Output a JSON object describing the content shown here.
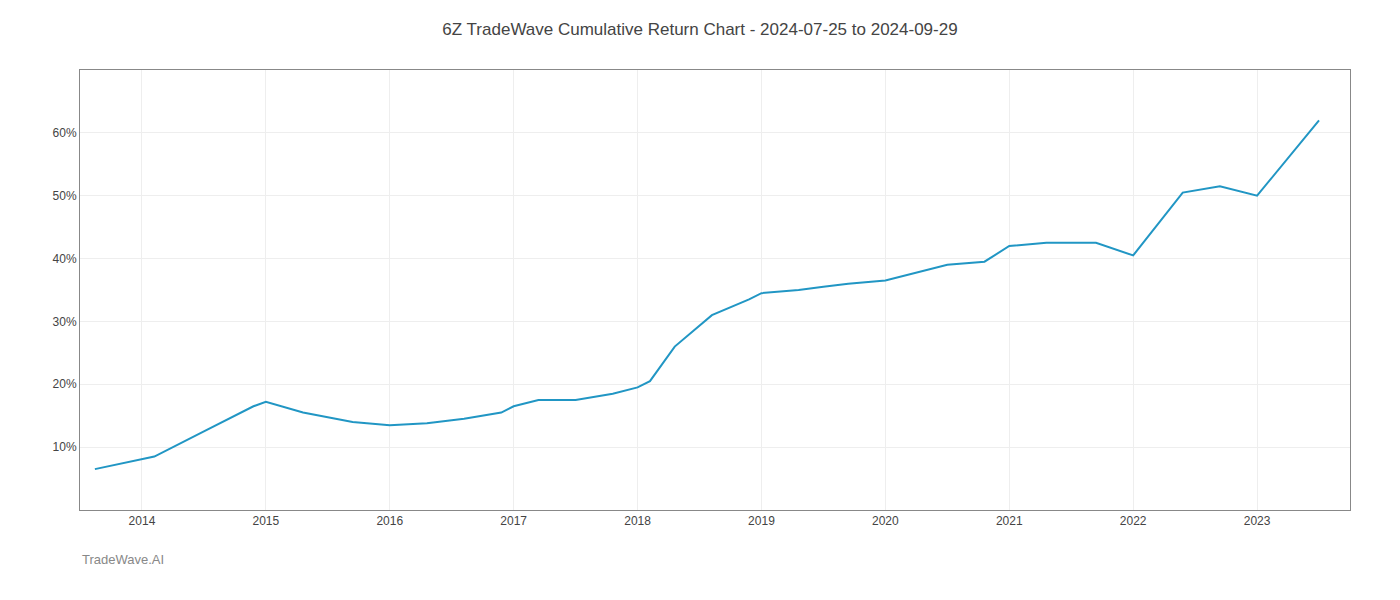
{
  "chart_data": {
    "type": "line",
    "title": "6Z TradeWave Cumulative Return Chart - 2024-07-25 to 2024-09-29",
    "annotations": [
      "TradeWave.AI"
    ],
    "x": [
      2013.62,
      2014.1,
      2014.5,
      2014.9,
      2015.0,
      2015.3,
      2015.7,
      2016.0,
      2016.3,
      2016.6,
      2016.9,
      2017.0,
      2017.2,
      2017.5,
      2017.8,
      2018.0,
      2018.1,
      2018.3,
      2018.6,
      2018.9,
      2019.0,
      2019.3,
      2019.5,
      2019.7,
      2020.0,
      2020.2,
      2020.5,
      2020.8,
      2021.0,
      2021.3,
      2021.7,
      2022.0,
      2022.4,
      2022.7,
      2023.0,
      2023.5
    ],
    "values": [
      6.5,
      8.5,
      12.5,
      16.5,
      17.2,
      15.5,
      14.0,
      13.5,
      13.8,
      14.5,
      15.5,
      16.5,
      17.5,
      17.5,
      18.5,
      19.5,
      20.5,
      26.0,
      31.0,
      33.5,
      34.5,
      35.0,
      35.5,
      36.0,
      36.5,
      37.5,
      39.0,
      39.5,
      42.0,
      42.5,
      42.5,
      40.5,
      50.5,
      51.5,
      50.0,
      62.0
    ],
    "color": "#2196c4",
    "xlim": [
      2013.5,
      2023.75
    ],
    "xticks": [
      2014,
      2015,
      2016,
      2017,
      2018,
      2019,
      2020,
      2021,
      2022,
      2023
    ],
    "ylim": [
      0,
      70
    ],
    "yticks": [
      {
        "value": 10,
        "label": "10%"
      },
      {
        "value": 20,
        "label": "20%"
      },
      {
        "value": 30,
        "label": "30%"
      },
      {
        "value": 40,
        "label": "40%"
      },
      {
        "value": 50,
        "label": "50%"
      },
      {
        "value": 60,
        "label": "60%"
      }
    ],
    "grid": true
  }
}
